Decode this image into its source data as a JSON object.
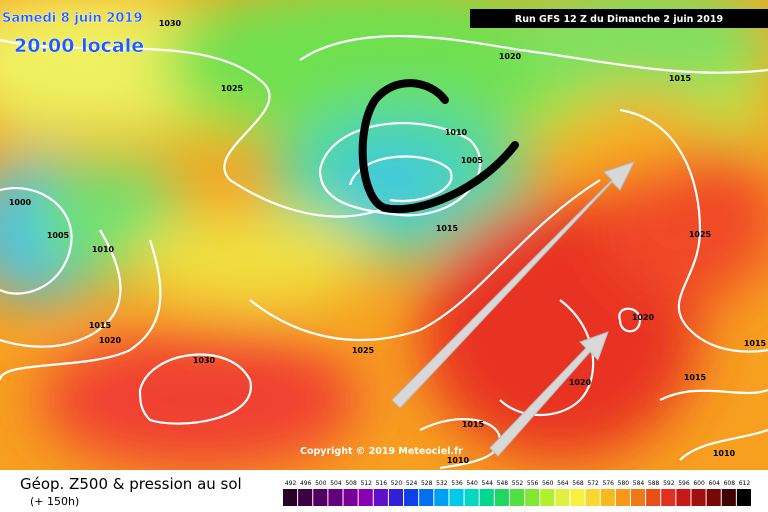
{
  "header": {
    "date": "Samedi 8 juin 2019",
    "time": "20:00 locale",
    "run": "Run GFS 12 Z du Dimanche 2 juin 2019"
  },
  "isobar_labels": [
    "1030",
    "1025",
    "1020",
    "1015",
    "1010",
    "1005",
    "1015",
    "1000",
    "1005",
    "1010",
    "1015",
    "1020",
    "1030",
    "1025",
    "1025",
    "1020",
    "1015",
    "1015",
    "1020",
    "1015",
    "1010",
    "1010"
  ],
  "copyright": "Copyright © 2019 Meteociel.fr",
  "legend": {
    "title": "Géop. Z500 & pression au sol",
    "lead": "(+ 150h)",
    "scale": [
      492,
      496,
      500,
      504,
      508,
      512,
      516,
      520,
      524,
      528,
      532,
      536,
      540,
      544,
      548,
      552,
      556,
      560,
      564,
      568,
      572,
      576,
      580,
      584,
      588,
      592,
      596,
      600,
      604,
      608,
      612
    ]
  }
}
